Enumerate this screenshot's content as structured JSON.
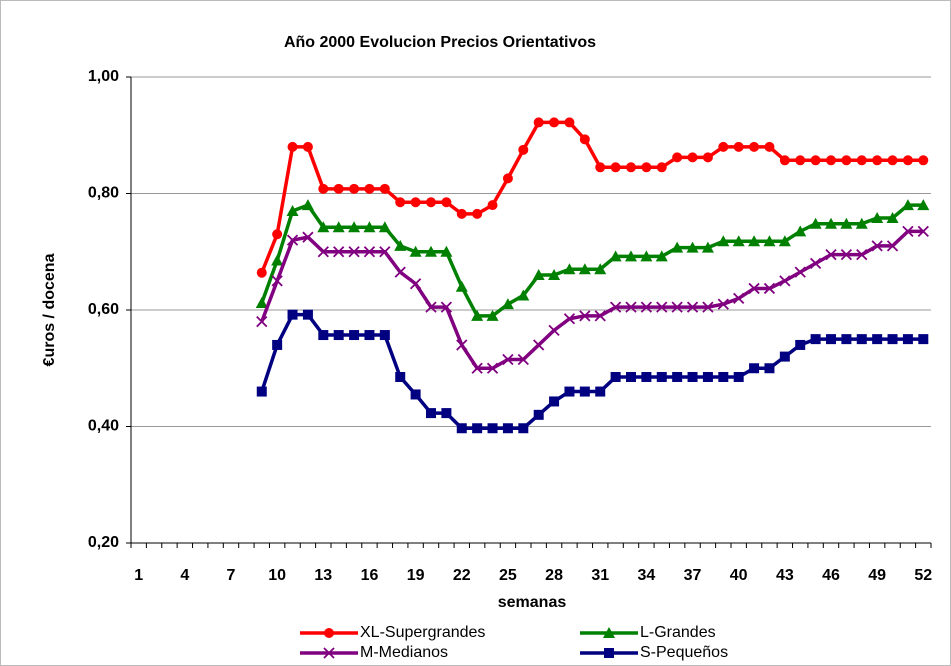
{
  "chart_data": {
    "type": "line",
    "title": "Año 2000 Evolucion Precios Orientativos",
    "x_label": "semanas",
    "y_label": "€uros / docena",
    "categories": [
      "1",
      null,
      null,
      "4",
      null,
      null,
      "7",
      null,
      null,
      "10",
      null,
      null,
      "13",
      null,
      null,
      "16",
      null,
      null,
      "19",
      null,
      null,
      "22",
      null,
      null,
      "25",
      null,
      null,
      "28",
      null,
      null,
      "31",
      null,
      null,
      "34",
      null,
      null,
      "37",
      null,
      null,
      "40",
      null,
      null,
      "43",
      null,
      null,
      "46",
      null,
      null,
      "49",
      null,
      null,
      "52"
    ],
    "ylim": [
      0.2,
      1.0
    ],
    "yticks": [
      {
        "value": 0.2,
        "label": "0,20"
      },
      {
        "value": 0.4,
        "label": "0,40"
      },
      {
        "value": 0.6,
        "label": "0,60"
      },
      {
        "value": 0.8,
        "label": "0,80"
      },
      {
        "value": 1.0,
        "label": "1,00"
      }
    ],
    "grid": true,
    "legend": "bottom",
    "series": [
      {
        "name": "XL-Supergrandes",
        "color": "#ff0000",
        "marker": "circle",
        "values": [
          null,
          null,
          null,
          null,
          null,
          null,
          null,
          null,
          0.664,
          0.73,
          0.88,
          0.88,
          0.808,
          0.808,
          0.808,
          0.808,
          0.808,
          0.785,
          0.785,
          0.785,
          0.785,
          0.765,
          0.765,
          0.78,
          0.826,
          0.875,
          0.922,
          0.922,
          0.922,
          0.893,
          0.845,
          0.845,
          0.845,
          0.845,
          0.845,
          0.862,
          0.862,
          0.862,
          0.88,
          0.88,
          0.88,
          0.88,
          0.857,
          0.857,
          0.857,
          0.857,
          0.857,
          0.857,
          0.857,
          0.857,
          0.857,
          0.857
        ]
      },
      {
        "name": "L-Grandes",
        "color": "#008000",
        "marker": "triangle",
        "values": [
          null,
          null,
          null,
          null,
          null,
          null,
          null,
          null,
          0.612,
          0.685,
          0.77,
          0.78,
          0.742,
          0.742,
          0.742,
          0.742,
          0.742,
          0.71,
          0.7,
          0.7,
          0.7,
          0.64,
          0.59,
          0.59,
          0.61,
          0.625,
          0.66,
          0.66,
          0.67,
          0.67,
          0.67,
          0.692,
          0.692,
          0.692,
          0.692,
          0.707,
          0.707,
          0.707,
          0.718,
          0.718,
          0.718,
          0.718,
          0.718,
          0.735,
          0.748,
          0.748,
          0.748,
          0.748,
          0.758,
          0.758,
          0.78,
          0.78
        ]
      },
      {
        "name": "M-Medianos",
        "color": "#800080",
        "marker": "x",
        "values": [
          null,
          null,
          null,
          null,
          null,
          null,
          null,
          null,
          0.58,
          0.65,
          0.72,
          0.725,
          0.7,
          0.7,
          0.7,
          0.7,
          0.7,
          0.665,
          0.645,
          0.605,
          0.605,
          0.54,
          0.5,
          0.5,
          0.515,
          0.515,
          0.54,
          0.565,
          0.585,
          0.59,
          0.59,
          0.605,
          0.605,
          0.605,
          0.605,
          0.605,
          0.605,
          0.605,
          0.61,
          0.62,
          0.637,
          0.637,
          0.65,
          0.665,
          0.68,
          0.695,
          0.695,
          0.695,
          0.71,
          0.71,
          0.735,
          0.735
        ]
      },
      {
        "name": "S-Pequeños",
        "color": "#000080",
        "marker": "square",
        "values": [
          null,
          null,
          null,
          null,
          null,
          null,
          null,
          null,
          0.46,
          0.54,
          0.592,
          0.592,
          0.557,
          0.557,
          0.557,
          0.557,
          0.557,
          0.485,
          0.455,
          0.423,
          0.423,
          0.397,
          0.397,
          0.397,
          0.397,
          0.397,
          0.42,
          0.443,
          0.46,
          0.46,
          0.46,
          0.485,
          0.485,
          0.485,
          0.485,
          0.485,
          0.485,
          0.485,
          0.485,
          0.485,
          0.5,
          0.5,
          0.52,
          0.54,
          0.55,
          0.55,
          0.55,
          0.55,
          0.55,
          0.55,
          0.55,
          0.55
        ]
      }
    ]
  }
}
